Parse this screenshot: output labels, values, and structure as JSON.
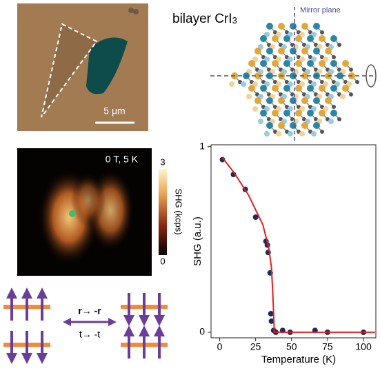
{
  "panels": {
    "scale_bar": "5 μm",
    "material": "bilayer CrI",
    "material_subscript": "3",
    "mirror_label": "Mirror plane",
    "map_condition": "0 T, 5 K",
    "colorbar_ticks": [
      3,
      0
    ],
    "colorbar_label": "SHG (kcps)",
    "spatial_inversion": "r→ -r",
    "time_reversal": "t→ -t"
  },
  "chart_data": {
    "type": "scatter",
    "xlabel": "Temperature (K)",
    "ylabel": "SHG (a.u.)",
    "xlim": [
      -6,
      108.6
    ],
    "ylim": [
      -0.03,
      1.01
    ],
    "xticks": [
      0,
      25,
      50,
      75,
      100
    ],
    "yticks": [
      0,
      1
    ],
    "series": [
      {
        "type": "scatter",
        "color": "#1c2a5c",
        "x": [
          1.9,
          9.6,
          17.8,
          25,
          32.2,
          33.2,
          33.7,
          35.1,
          35.6,
          36,
          37.5,
          39,
          43.8,
          49,
          66.3,
          75,
          100
        ],
        "values": [
          0.93,
          0.85,
          0.77,
          0.62,
          0.49,
          0.47,
          0.43,
          0.32,
          0.1,
          0.06,
          0.01,
          0,
          0.01,
          0,
          0.01,
          0,
          0
        ]
      },
      {
        "type": "line",
        "color": "#e02020",
        "x": [
          2,
          10,
          20,
          30,
          34,
          36,
          37,
          38,
          40,
          50,
          75,
          100,
          108
        ],
        "values": [
          0.94,
          0.86,
          0.74,
          0.58,
          0.46,
          0.35,
          0.2,
          0.0,
          0,
          0,
          0,
          0,
          0
        ]
      }
    ]
  }
}
